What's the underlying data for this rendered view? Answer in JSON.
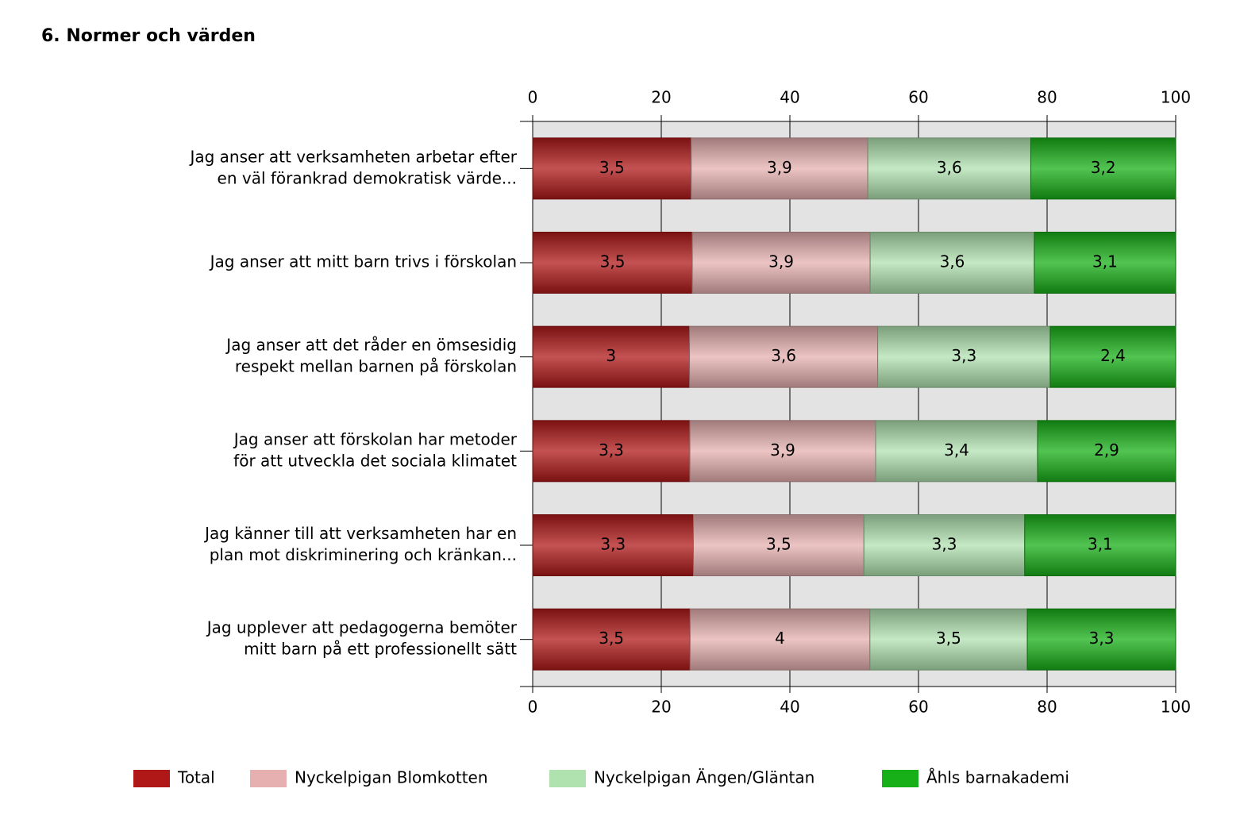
{
  "chart_data": {
    "type": "bar_percent_stacked",
    "orientation": "horizontal",
    "title": "6. Normer och värden",
    "categories": [
      [
        "Jag anser att verksamheten arbetar efter",
        "en väl förankrad demokratisk värde..."
      ],
      [
        "Jag anser att mitt barn trivs i förskolan"
      ],
      [
        "Jag anser att det råder en ömsesidig",
        "respekt mellan barnen på förskolan"
      ],
      [
        "Jag anser att förskolan har metoder",
        "för att utveckla det sociala klimatet"
      ],
      [
        "Jag känner till att verksamheten har en",
        "plan mot diskriminering och kränkan..."
      ],
      [
        "Jag upplever att pedagogerna bemöter",
        "mitt barn på ett professionellt sätt"
      ]
    ],
    "series": [
      {
        "name": "Total",
        "color": "#b01818",
        "values": [
          3.5,
          3.5,
          3,
          3.3,
          3.3,
          3.5
        ],
        "value_labels": [
          "3,5",
          "3,5",
          "3",
          "3,3",
          "3,3",
          "3,5"
        ]
      },
      {
        "name": "Nyckelpigan Blomkotten",
        "color": "#e6b0b0",
        "values": [
          3.9,
          3.9,
          3.6,
          3.9,
          3.5,
          4
        ],
        "value_labels": [
          "3,9",
          "3,9",
          "3,6",
          "3,9",
          "3,5",
          "4"
        ]
      },
      {
        "name": "Nyckelpigan Ängen/Gläntan",
        "color": "#b0e2b0",
        "values": [
          3.6,
          3.6,
          3.3,
          3.4,
          3.3,
          3.5
        ],
        "value_labels": [
          "3,6",
          "3,6",
          "3,3",
          "3,4",
          "3,3",
          "3,5"
        ]
      },
      {
        "name": "Åhls barnakademi",
        "color": "#18b018",
        "values": [
          3.2,
          3.1,
          2.4,
          2.9,
          3.1,
          3.3
        ],
        "value_labels": [
          "3,2",
          "3,1",
          "2,4",
          "2,9",
          "3,1",
          "3,3"
        ]
      }
    ],
    "xlim": [
      0,
      100
    ],
    "xticks": [
      0,
      20,
      40,
      60,
      80,
      100
    ],
    "grid": true
  }
}
